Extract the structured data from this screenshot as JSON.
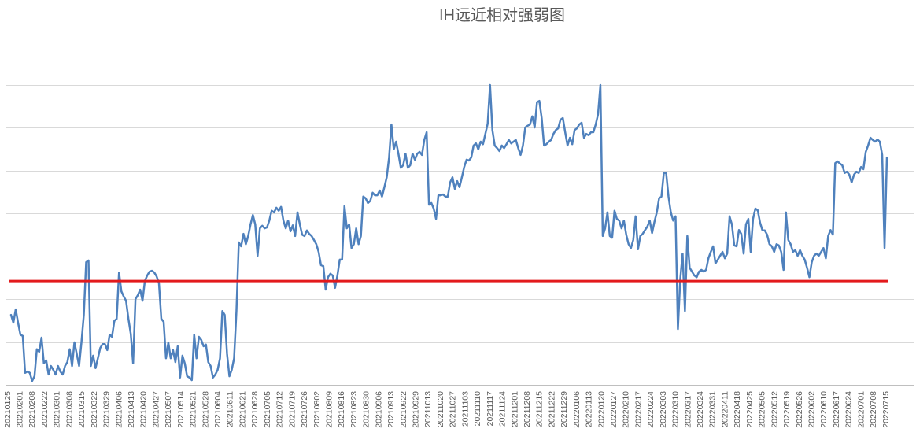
{
  "chart_data": {
    "type": "line",
    "title": "IH远近相对强弱图",
    "xlabel": "",
    "ylabel": "",
    "ylim": [
      0,
      8
    ],
    "grid": true,
    "legend": "none",
    "x_tick_labels": [
      "20210125",
      "20210201",
      "20210208",
      "20210222",
      "20210301",
      "20210308",
      "20210315",
      "20210322",
      "20210329",
      "20210406",
      "20210413",
      "20210420",
      "20210427",
      "20210507",
      "20210514",
      "20210521",
      "20210528",
      "20210604",
      "20210611",
      "20210621",
      "20210628",
      "20210705",
      "20210712",
      "20210719",
      "20210726",
      "20210802",
      "20210809",
      "20210816",
      "20210823",
      "20210830",
      "20210906",
      "20210913",
      "20210922",
      "20210929",
      "20211013",
      "20211020",
      "20211027",
      "20211103",
      "20211110",
      "20211117",
      "20211124",
      "20211201",
      "20211208",
      "20211215",
      "20211222",
      "20211229",
      "20220106",
      "20220113",
      "20220120",
      "20220127",
      "20220210",
      "20220217",
      "20220224",
      "20220303",
      "20220310",
      "20220317",
      "20220324",
      "20220331",
      "20220411",
      "20220418",
      "20220425",
      "20220505",
      "20220512",
      "20220519",
      "20220526",
      "20220602",
      "20220610",
      "20220617",
      "20220624",
      "20220701",
      "20220708",
      "20220715"
    ],
    "series": [
      {
        "color": "#4f81bd",
        "values": [
          1.63,
          1.45,
          1.76,
          1.45,
          1.17,
          1.14,
          0.28,
          0.31,
          0.28,
          0.09,
          0.2,
          0.83,
          0.77,
          1.1,
          0.5,
          0.57,
          0.24,
          0.44,
          0.35,
          0.24,
          0.44,
          0.31,
          0.24,
          0.44,
          0.53,
          0.83,
          0.44,
          0.99,
          0.72,
          0.44,
          0.99,
          1.63,
          2.86,
          2.9,
          0.44,
          0.68,
          0.39,
          0.62,
          0.86,
          0.95,
          0.95,
          0.81,
          1.17,
          1.12,
          1.49,
          1.54,
          2.62,
          2.18,
          2.06,
          1.96,
          1.54,
          1.19,
          0.5,
          2.0,
          2.09,
          2.22,
          1.96,
          2.42,
          2.55,
          2.64,
          2.66,
          2.62,
          2.53,
          2.37,
          1.54,
          1.47,
          0.62,
          0.99,
          0.62,
          0.81,
          0.53,
          0.9,
          0.17,
          0.68,
          0.5,
          0.2,
          0.17,
          0.11,
          1.17,
          0.62,
          1.12,
          1.05,
          0.9,
          0.94,
          0.53,
          0.44,
          0.17,
          0.24,
          0.35,
          0.62,
          1.72,
          1.63,
          0.72,
          0.2,
          0.35,
          0.62,
          1.72,
          3.32,
          3.23,
          3.52,
          3.28,
          3.47,
          3.74,
          3.96,
          3.74,
          3.01,
          3.65,
          3.71,
          3.65,
          3.67,
          3.83,
          4.06,
          4.02,
          4.13,
          4.06,
          4.15,
          3.83,
          3.65,
          3.83,
          3.58,
          3.72,
          3.47,
          4.02,
          3.74,
          3.5,
          3.47,
          3.6,
          3.52,
          3.47,
          3.38,
          3.28,
          3.1,
          2.79,
          2.77,
          2.22,
          2.51,
          2.59,
          2.55,
          2.26,
          2.55,
          2.92,
          2.92,
          4.17,
          3.65,
          3.74,
          3.19,
          3.28,
          3.65,
          3.28,
          3.47,
          4.39,
          4.35,
          4.24,
          4.29,
          4.48,
          4.42,
          4.42,
          4.53,
          4.39,
          4.61,
          4.84,
          5.3,
          6.07,
          5.49,
          5.67,
          5.38,
          5.06,
          5.12,
          5.39,
          5.06,
          5.12,
          5.39,
          5.25,
          5.39,
          5.43,
          5.36,
          5.71,
          5.89,
          4.2,
          4.24,
          4.11,
          3.87,
          4.42,
          4.42,
          4.44,
          4.39,
          4.39,
          4.72,
          4.84,
          4.57,
          4.75,
          4.61,
          4.84,
          5.08,
          5.25,
          5.23,
          5.3,
          5.58,
          5.63,
          5.49,
          5.67,
          5.61,
          5.85,
          6.09,
          6.99,
          5.94,
          5.58,
          5.52,
          5.45,
          5.58,
          5.52,
          5.61,
          5.71,
          5.63,
          5.67,
          5.71,
          5.52,
          5.36,
          5.58,
          6.0,
          6.04,
          6.07,
          6.26,
          6.0,
          6.59,
          6.62,
          6.22,
          5.58,
          5.61,
          5.67,
          5.71,
          5.85,
          5.94,
          5.98,
          6.18,
          6.22,
          5.89,
          5.58,
          5.76,
          5.61,
          5.94,
          5.98,
          6.07,
          6.11,
          5.76,
          5.85,
          5.82,
          5.89,
          5.89,
          6.07,
          6.31,
          6.99,
          3.47,
          3.65,
          4.02,
          3.47,
          3.43,
          4.06,
          3.87,
          3.83,
          3.65,
          3.83,
          3.5,
          3.28,
          3.19,
          3.38,
          3.93,
          3.16,
          3.47,
          3.52,
          3.61,
          3.69,
          3.83,
          3.54,
          3.8,
          4.02,
          4.35,
          4.39,
          4.94,
          4.94,
          4.39,
          4.02,
          3.83,
          3.93,
          1.3,
          2.46,
          3.06,
          1.72,
          3.47,
          2.73,
          2.64,
          2.55,
          2.51,
          2.64,
          2.68,
          2.64,
          2.68,
          2.95,
          3.1,
          3.23,
          2.83,
          2.92,
          3.01,
          3.1,
          2.95,
          3.06,
          3.93,
          3.74,
          3.25,
          3.23,
          3.61,
          3.52,
          3.06,
          3.74,
          3.87,
          3.1,
          3.87,
          4.11,
          4.07,
          3.78,
          3.6,
          3.6,
          3.5,
          3.28,
          3.23,
          3.1,
          3.28,
          3.25,
          3.1,
          2.68,
          4.02,
          3.38,
          3.28,
          3.1,
          3.14,
          3.01,
          3.14,
          3.01,
          2.92,
          2.73,
          2.51,
          2.86,
          3.01,
          3.06,
          3.01,
          3.1,
          3.19,
          2.95,
          3.47,
          3.61,
          3.5,
          5.17,
          5.21,
          5.16,
          5.12,
          4.94,
          4.97,
          4.9,
          4.72,
          4.9,
          4.97,
          4.94,
          5.08,
          5.03,
          5.43,
          5.58,
          5.76,
          5.71,
          5.67,
          5.72,
          5.67,
          5.36,
          3.19,
          5.3
        ]
      }
    ],
    "reference_line": {
      "value": 2.42,
      "color": "#e31a1c"
    }
  }
}
